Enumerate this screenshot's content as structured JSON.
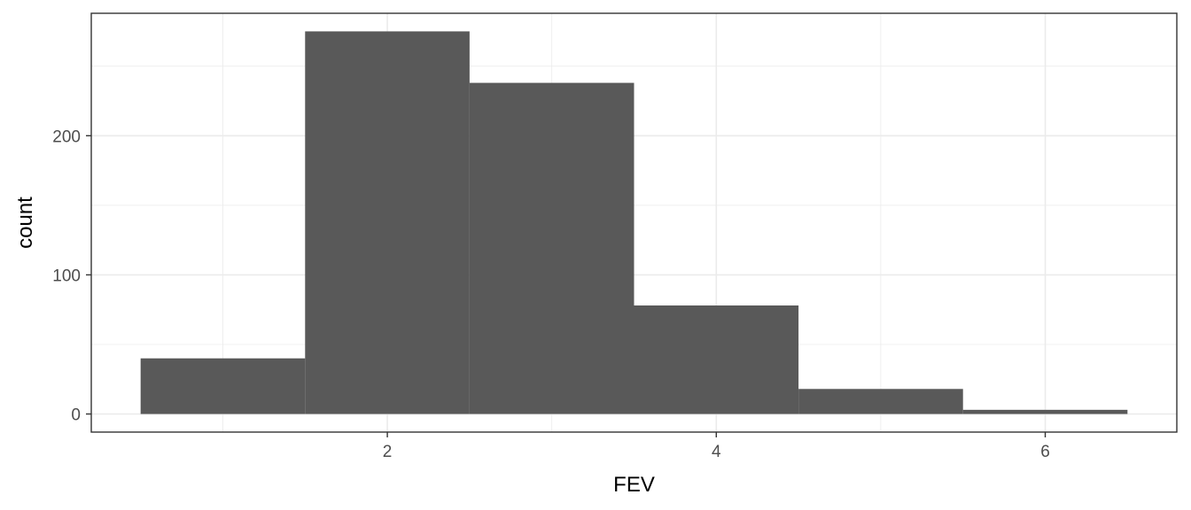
{
  "chart_data": {
    "type": "bar",
    "subtype": "histogram",
    "title": "",
    "xlabel": "FEV",
    "ylabel": "count",
    "bins": [
      {
        "x_min": 0.5,
        "x_max": 1.5,
        "count": 40
      },
      {
        "x_min": 1.5,
        "x_max": 2.5,
        "count": 275
      },
      {
        "x_min": 2.5,
        "x_max": 3.5,
        "count": 238
      },
      {
        "x_min": 3.5,
        "x_max": 4.5,
        "count": 78
      },
      {
        "x_min": 4.5,
        "x_max": 5.5,
        "count": 18
      },
      {
        "x_min": 5.5,
        "x_max": 6.5,
        "count": 3
      }
    ],
    "xlim": [
      0.2,
      6.8
    ],
    "ylim": [
      -13,
      288
    ],
    "x_ticks": [
      2,
      4,
      6
    ],
    "x_tick_labels": [
      "2",
      "4",
      "6"
    ],
    "x_minor_ticks": [
      1,
      3,
      5
    ],
    "y_ticks": [
      0,
      100,
      200
    ],
    "y_tick_labels": [
      "0",
      "100",
      "200"
    ],
    "y_minor_ticks": [
      50,
      150,
      250
    ],
    "grid": true,
    "legend": "none",
    "colors": {
      "bar_fill": "#595959",
      "grid": "#ebebeb",
      "panel_border": "#333333",
      "tick_text": "#4d4d4d"
    }
  }
}
